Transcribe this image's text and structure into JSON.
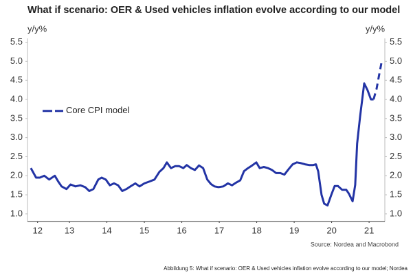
{
  "chart_data": {
    "type": "line",
    "title": "What if scenario: OER & Used vehicles inflation evolve according to our model",
    "y_label": "y/y%",
    "y2_label": "y/y%",
    "source": "Source: Nordea and Macrobond",
    "caption": "Abbildung 5: What if scenario: OER & Used vehicles inflation evolve according to our model; Nordea",
    "legend": "left",
    "grid": false,
    "x": [
      2012.47,
      2012.61,
      2012.71,
      2012.83,
      2012.96,
      2013.11,
      2013.2,
      2013.29,
      2013.42,
      2013.53,
      2013.66,
      2013.79,
      2013.92,
      2014.03,
      2014.14,
      2014.27,
      2014.36,
      2014.47,
      2014.58,
      2014.69,
      2014.8,
      2014.91,
      2015.02,
      2015.13,
      2015.26,
      2015.37,
      2015.5,
      2015.64,
      2015.77,
      2015.9,
      2016.01,
      2016.1,
      2016.21,
      2016.32,
      2016.43,
      2016.54,
      2016.63,
      2016.74,
      2016.85,
      2016.96,
      2017.07,
      2017.18,
      2017.28,
      2017.37,
      2017.48,
      2017.61,
      2017.73,
      2017.84,
      2017.95,
      2018.06,
      2018.16,
      2018.27,
      2018.38,
      2018.49,
      2018.58,
      2018.69,
      2018.8,
      2018.91,
      2019.02,
      2019.13,
      2019.24,
      2019.35,
      2019.46,
      2019.57,
      2019.68,
      2019.79,
      2019.9,
      2020.01,
      2020.08,
      2020.14,
      2020.23,
      2020.3,
      2020.39,
      2020.49,
      2020.58,
      2020.67,
      2020.78,
      2020.89,
      2020.96,
      2021.06,
      2021.13,
      2021.18,
      2021.26,
      2021.37,
      2021.46,
      2021.55,
      2021.62,
      2021.7,
      2021.77,
      2021.83
    ],
    "series": [
      {
        "name": "Core CPI model",
        "color": "#2334a5",
        "dashed_x": 2021.62,
        "values": [
          2.2,
          1.95,
          1.95,
          2.0,
          1.9,
          2.0,
          1.85,
          1.72,
          1.65,
          1.77,
          1.72,
          1.75,
          1.7,
          1.6,
          1.65,
          1.9,
          1.95,
          1.9,
          1.75,
          1.8,
          1.75,
          1.6,
          1.65,
          1.72,
          1.8,
          1.72,
          1.8,
          1.85,
          1.9,
          2.1,
          2.2,
          2.35,
          2.2,
          2.25,
          2.25,
          2.2,
          2.28,
          2.2,
          2.15,
          2.27,
          2.2,
          1.9,
          1.78,
          1.72,
          1.7,
          1.72,
          1.8,
          1.75,
          1.82,
          1.88,
          2.12,
          2.2,
          2.27,
          2.35,
          2.2,
          2.23,
          2.2,
          2.15,
          2.07,
          2.07,
          2.03,
          2.17,
          2.3,
          2.35,
          2.33,
          2.3,
          2.28,
          2.28,
          2.3,
          2.12,
          1.5,
          1.27,
          1.22,
          1.5,
          1.73,
          1.73,
          1.63,
          1.63,
          1.53,
          1.33,
          1.76,
          2.84,
          3.55,
          4.42,
          4.24,
          4.0,
          4.0,
          4.28,
          4.65,
          4.96
        ]
      }
    ],
    "xlim": [
      2012.38,
      2021.92
    ],
    "xticks": [
      {
        "value": 2012.65,
        "label": "12"
      },
      {
        "value": 2013.5,
        "label": "13"
      },
      {
        "value": 2014.5,
        "label": "14"
      },
      {
        "value": 2015.5,
        "label": "15"
      },
      {
        "value": 2016.5,
        "label": "16"
      },
      {
        "value": 2017.5,
        "label": "17"
      },
      {
        "value": 2018.5,
        "label": "18"
      },
      {
        "value": 2019.5,
        "label": "19"
      },
      {
        "value": 2020.5,
        "label": "20"
      },
      {
        "value": 2021.5,
        "label": "21"
      }
    ],
    "ylim": [
      0.8,
      5.6
    ],
    "yticks": [
      {
        "value": 1,
        "label": "1.0"
      },
      1.5,
      {
        "value": 2,
        "label": "2.0"
      },
      2.5,
      {
        "value": 3,
        "label": "3.0"
      },
      3.5,
      {
        "value": 4,
        "label": "4.0"
      },
      4.5,
      {
        "value": 5,
        "label": "5.0"
      },
      5.5
    ],
    "y2lim": [
      0.8,
      5.6
    ],
    "y2ticks": [
      {
        "value": 1,
        "label": "1.0"
      },
      1.5,
      {
        "value": 2,
        "label": "2.0"
      },
      2.5,
      {
        "value": 3,
        "label": "3.0"
      },
      3.5,
      {
        "value": 4,
        "label": "4.0"
      },
      4.5,
      {
        "value": 5,
        "label": "5.0"
      },
      5.5
    ]
  }
}
